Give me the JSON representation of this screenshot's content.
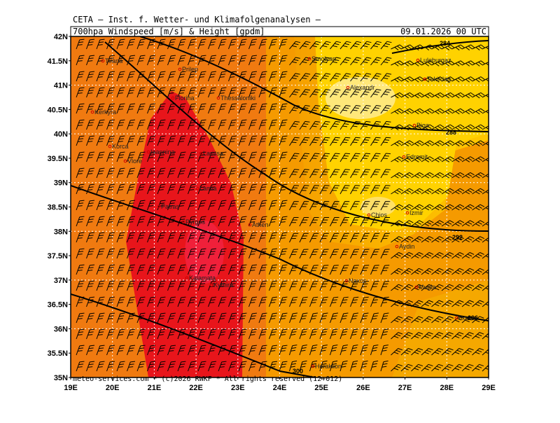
{
  "header": {
    "institute": "CETA – Inst. f. Wetter- und Klimafolgenanalysen –",
    "parameter": "700hpa Windspeed [m/s] & Height [gpdm]",
    "valid": "09.01.2026 00 UTC"
  },
  "footer": "meteo-services.com * (c)2026 RWKF * All rights reserved (12+012)",
  "map": {
    "lat_labels": [
      "42N",
      "41.5N",
      "41N",
      "40.5N",
      "40N",
      "39.5N",
      "39N",
      "38.5N",
      "38N",
      "37.5N",
      "37N",
      "36.5N",
      "36N",
      "35.5N",
      "35N"
    ],
    "lon_labels": [
      "19E",
      "20E",
      "21E",
      "22E",
      "23E",
      "24E",
      "25E",
      "26E",
      "27E",
      "28E",
      "29E"
    ],
    "contour_labels": [
      "284",
      "288",
      "292",
      "296",
      "300"
    ],
    "cities": [
      "Tirana",
      "Prilep",
      "Florina",
      "Thessaloniki",
      "Smolyan",
      "Alexandr",
      "Luleburgaz",
      "Tekirdag",
      "Biga",
      "Edremit",
      "Chios",
      "Izmir",
      "Aydin",
      "Naxos",
      "Mugla",
      "Rodos",
      "Athen",
      "Kythira",
      "Heraklion",
      "Korca",
      "Kerkyra",
      "Ioannina",
      "Larissa",
      "Lamia",
      "Patras",
      "Kalamata",
      "Vlore",
      "Pyrgos"
    ]
  }
}
